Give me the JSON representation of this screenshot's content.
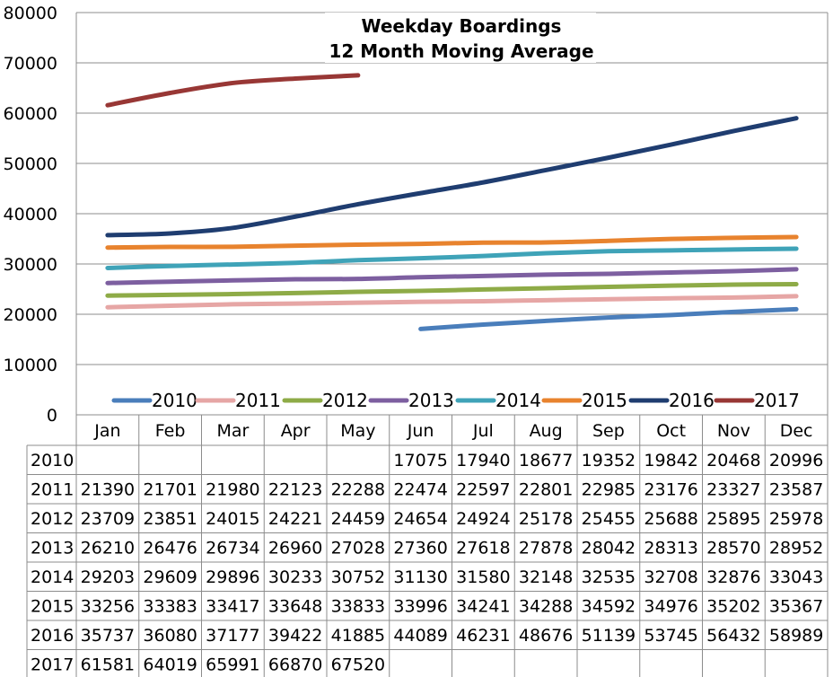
{
  "chart_data": {
    "type": "line",
    "title": [
      "Weekday Boardings",
      "12 Month Moving Average"
    ],
    "xlabel": "",
    "ylabel": "",
    "ylim": [
      0,
      80000
    ],
    "yticks": [
      "0",
      "10000",
      "20000",
      "30000",
      "40000",
      "50000",
      "60000",
      "70000",
      "80000"
    ],
    "categories": [
      "Jan",
      "Feb",
      "Mar",
      "Apr",
      "May",
      "Jun",
      "Jul",
      "Aug",
      "Sep",
      "Oct",
      "Nov",
      "Dec"
    ],
    "grid": "horizontal",
    "legend_placement": "bottom",
    "series": [
      {
        "name": "2010",
        "color": "#4A7EBB",
        "values": [
          null,
          null,
          null,
          null,
          null,
          17075,
          17940,
          18677,
          19352,
          19842,
          20468,
          20996
        ]
      },
      {
        "name": "2011",
        "color": "#E6A6A5",
        "values": [
          21390,
          21701,
          21980,
          22123,
          22288,
          22474,
          22597,
          22801,
          22985,
          23176,
          23327,
          23587
        ]
      },
      {
        "name": "2012",
        "color": "#8EAB47",
        "values": [
          23709,
          23851,
          24015,
          24221,
          24459,
          24654,
          24924,
          25178,
          25455,
          25688,
          25895,
          25978
        ]
      },
      {
        "name": "2013",
        "color": "#7D5FA0",
        "values": [
          26210,
          26476,
          26734,
          26960,
          27028,
          27360,
          27618,
          27878,
          28042,
          28313,
          28570,
          28952
        ]
      },
      {
        "name": "2014",
        "color": "#3FA3B8",
        "values": [
          29203,
          29609,
          29896,
          30233,
          30752,
          31130,
          31580,
          32148,
          32535,
          32708,
          32876,
          33043
        ]
      },
      {
        "name": "2015",
        "color": "#E8832E",
        "values": [
          33256,
          33383,
          33417,
          33648,
          33833,
          33996,
          34241,
          34288,
          34592,
          34976,
          35202,
          35367
        ]
      },
      {
        "name": "2016",
        "color": "#1F3D70",
        "values": [
          35737,
          36080,
          37177,
          39422,
          41885,
          44089,
          46231,
          48676,
          51139,
          53745,
          56432,
          58989
        ]
      },
      {
        "name": "2017",
        "color": "#983735",
        "values": [
          61581,
          64019,
          65991,
          66870,
          67520,
          null,
          null,
          null,
          null,
          null,
          null,
          null
        ]
      }
    ]
  }
}
